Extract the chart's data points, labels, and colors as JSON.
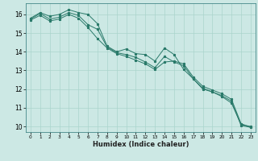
{
  "xlabel": "Humidex (Indice chaleur)",
  "ylabel": "",
  "bg_color": "#cce8e4",
  "grid_color": "#aad4cc",
  "line_color": "#2a7a6a",
  "xlim": [
    -0.5,
    23.5
  ],
  "ylim": [
    9.7,
    16.6
  ],
  "xticks": [
    0,
    1,
    2,
    3,
    4,
    5,
    6,
    7,
    8,
    9,
    10,
    11,
    12,
    13,
    14,
    15,
    16,
    17,
    18,
    19,
    20,
    21,
    22,
    23
  ],
  "yticks": [
    10,
    11,
    12,
    13,
    14,
    15,
    16
  ],
  "line1_x": [
    0,
    1,
    2,
    3,
    4,
    5,
    6,
    7,
    8,
    9,
    10,
    11,
    12,
    13,
    14,
    15,
    16,
    17,
    18,
    19,
    20,
    21,
    22,
    23
  ],
  "line1_y": [
    15.8,
    16.1,
    15.9,
    16.0,
    16.25,
    16.1,
    16.0,
    15.5,
    14.3,
    14.0,
    14.15,
    13.9,
    13.85,
    13.5,
    14.2,
    13.85,
    13.05,
    12.55,
    12.0,
    11.85,
    11.6,
    11.25,
    10.1,
    10.0
  ],
  "line2_x": [
    0,
    1,
    2,
    3,
    4,
    5,
    6,
    7,
    8,
    9,
    10,
    11,
    12,
    13,
    14,
    15,
    16,
    17,
    18,
    19,
    20,
    21,
    22,
    23
  ],
  "line2_y": [
    15.75,
    16.05,
    15.75,
    15.85,
    16.1,
    15.95,
    15.45,
    15.2,
    14.25,
    13.95,
    13.85,
    13.7,
    13.45,
    13.15,
    13.75,
    13.45,
    13.25,
    12.55,
    12.05,
    11.85,
    11.65,
    11.35,
    10.05,
    9.95
  ],
  "line3_x": [
    0,
    1,
    2,
    3,
    4,
    5,
    6,
    7,
    8,
    9,
    10,
    11,
    12,
    13,
    14,
    15,
    16,
    17,
    18,
    19,
    20,
    21,
    22,
    23
  ],
  "line3_y": [
    15.7,
    15.95,
    15.65,
    15.75,
    16.0,
    15.8,
    15.3,
    14.7,
    14.2,
    13.9,
    13.75,
    13.55,
    13.35,
    13.05,
    13.45,
    13.5,
    13.35,
    12.65,
    12.15,
    11.95,
    11.75,
    11.45,
    10.15,
    9.95
  ]
}
